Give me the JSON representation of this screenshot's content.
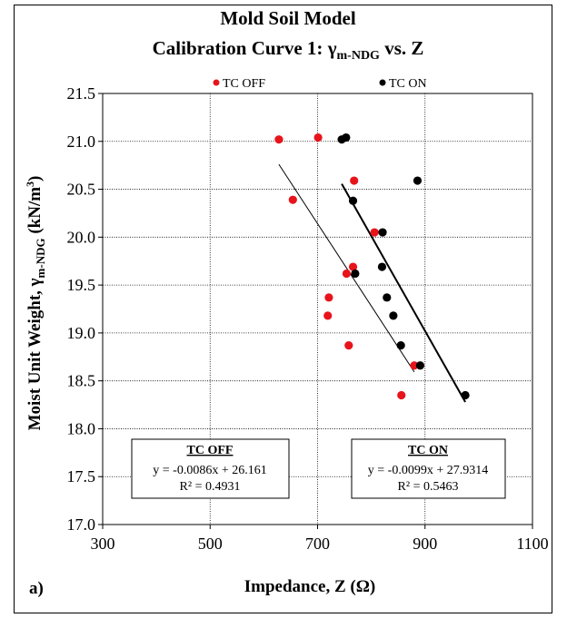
{
  "chart_data": {
    "type": "scatter",
    "title_line1": "Mold Soil Model",
    "title_line2_prefix": "Calibration Curve 1: ",
    "title_gamma": "γ",
    "title_sub": "m-NDG",
    "title_line2_suffix": " vs. Z",
    "xlabel": "Impedance, Z (Ω)",
    "ylabel_prefix": "Moist Unit Weight, ",
    "ylabel_gamma": "γ",
    "ylabel_sub": "m-NDG",
    "ylabel_unit": " (kN/m",
    "ylabel_sup": "3",
    "ylabel_close": ")",
    "xlim": [
      300,
      1100
    ],
    "ylim": [
      17.0,
      21.5
    ],
    "xticks": [
      300,
      500,
      700,
      900,
      1100
    ],
    "yticks": [
      "17.0",
      "17.5",
      "18.0",
      "18.5",
      "19.0",
      "19.5",
      "20.0",
      "20.5",
      "21.0",
      "21.5"
    ],
    "grid": true,
    "legend_position": "top",
    "panel_label": "a)",
    "series": [
      {
        "name": "TC OFF",
        "color": "#e8141b",
        "points": [
          [
            628,
            21.02
          ],
          [
            701,
            21.04
          ],
          [
            654,
            20.39
          ],
          [
            768,
            20.59
          ],
          [
            806,
            20.05
          ],
          [
            766,
            19.69
          ],
          [
            754,
            19.62
          ],
          [
            721,
            19.37
          ],
          [
            719,
            19.18
          ],
          [
            758,
            18.87
          ],
          [
            880,
            18.66
          ],
          [
            856,
            18.35
          ]
        ],
        "trend": {
          "slope": -0.0086,
          "intercept": 26.161,
          "x_range": [
            628,
            880
          ]
        },
        "equation": "y = -0.0086x + 26.161",
        "r2": "R² = 0.4931",
        "box_title": "TC OFF"
      },
      {
        "name": "TC ON",
        "color": "#000000",
        "points": [
          [
            745,
            21.02
          ],
          [
            753,
            21.04
          ],
          [
            886,
            20.59
          ],
          [
            766,
            20.38
          ],
          [
            821,
            20.05
          ],
          [
            820,
            19.69
          ],
          [
            770,
            19.62
          ],
          [
            829,
            19.37
          ],
          [
            841,
            19.18
          ],
          [
            855,
            18.87
          ],
          [
            891,
            18.66
          ],
          [
            975,
            18.35
          ]
        ],
        "trend": {
          "slope": -0.0099,
          "intercept": 27.9314,
          "x_range": [
            745,
            975
          ]
        },
        "equation": "y = -0.0099x + 27.9314",
        "r2": "R² = 0.5463",
        "box_title": "TC ON"
      }
    ]
  }
}
